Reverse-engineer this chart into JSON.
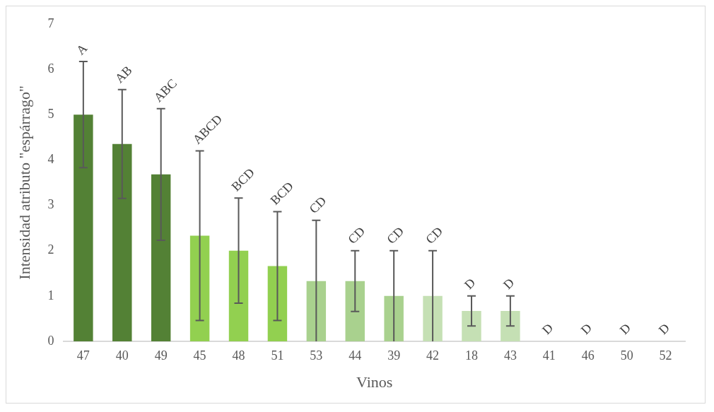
{
  "chart_data": {
    "type": "bar",
    "xlabel": "Vinos",
    "ylabel": "Intensidad atributo \"espárrago\"",
    "categories": [
      "47",
      "40",
      "49",
      "45",
      "48",
      "51",
      "53",
      "44",
      "39",
      "42",
      "18",
      "43",
      "41",
      "46",
      "50",
      "52"
    ],
    "values": [
      5.0,
      4.35,
      3.68,
      2.33,
      2.0,
      1.66,
      1.33,
      1.33,
      1.0,
      1.0,
      0.67,
      0.67,
      0,
      0,
      0,
      0
    ],
    "colors": [
      "#538135",
      "#538135",
      "#538135",
      "#92d050",
      "#92d050",
      "#92d050",
      "#a9d18e",
      "#a9d18e",
      "#a9d18e",
      "#c5e0b4",
      "#c5e0b4",
      "#c5e0b4",
      "#c5e0b4",
      "#c5e0b4",
      "#c5e0b4",
      "#c5e0b4"
    ],
    "errors": [
      1.17,
      1.2,
      1.45,
      1.87,
      1.16,
      1.2,
      [
        0,
        2.67
      ],
      0.67,
      1,
      1,
      0.33,
      0.33,
      null,
      null,
      null,
      null
    ],
    "annotations": [
      {
        "text": "A",
        "x": "47",
        "y": 6.17
      },
      {
        "text": "AB",
        "x": "40",
        "y": 5.55
      },
      {
        "text": "ABC",
        "x": "49",
        "y": 5.13
      },
      {
        "text": "ABCD",
        "x": "45",
        "y": 4.2
      },
      {
        "text": "BCD",
        "x": "48",
        "y": 3.16
      },
      {
        "text": "BCD",
        "x": "51",
        "y": 2.86
      },
      {
        "text": "CD",
        "x": "53",
        "y": 2.67
      },
      {
        "text": "CD",
        "x": "44",
        "y": 2.0
      },
      {
        "text": "CD",
        "x": "39",
        "y": 2.0
      },
      {
        "text": "CD",
        "x": "42",
        "y": 2.0
      },
      {
        "text": "D",
        "x": "18",
        "y": 1.0
      },
      {
        "text": "D",
        "x": "43",
        "y": 1.0
      },
      {
        "text": "D",
        "x": "41",
        "y": 0
      },
      {
        "text": "D",
        "x": "46",
        "y": 0
      },
      {
        "text": "D",
        "x": "50",
        "y": 0
      },
      {
        "text": "D",
        "x": "52",
        "y": 0
      }
    ],
    "ylim": [
      0,
      7
    ],
    "yticks": [
      0,
      1,
      2,
      3,
      4,
      5,
      6,
      7
    ],
    "grid": false,
    "legend": false
  }
}
